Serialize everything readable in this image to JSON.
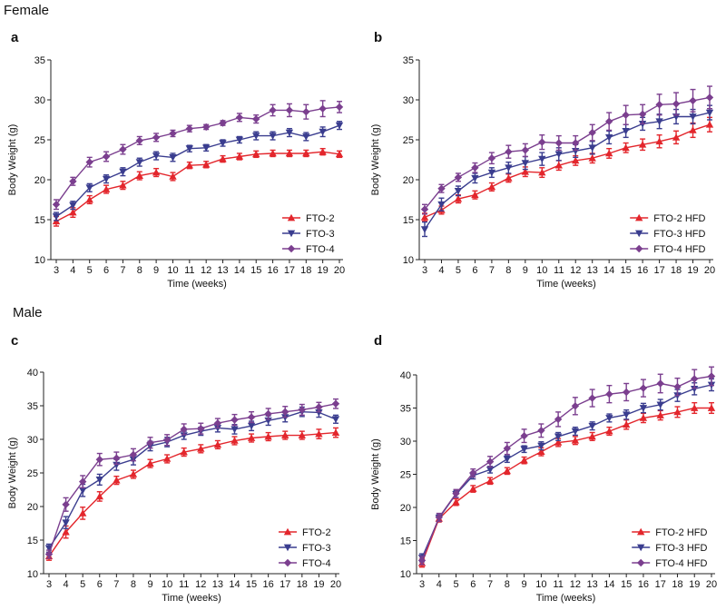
{
  "sections": {
    "female": "Female",
    "male": "Male"
  },
  "chart_data": [
    {
      "id": "a",
      "label": "a",
      "type": "line",
      "xlabel": "Time (weeks)",
      "ylabel": "Body Weight (g)",
      "xlim": [
        3,
        20
      ],
      "ylim": [
        10,
        35
      ],
      "yticks": [
        10,
        15,
        20,
        25,
        30,
        35
      ],
      "x": [
        3,
        4,
        5,
        6,
        7,
        8,
        9,
        10,
        11,
        12,
        13,
        14,
        15,
        16,
        17,
        18,
        19,
        20
      ],
      "legend_position": "bottom-right",
      "series": [
        {
          "name": "FTO-2",
          "color": "#e3262c",
          "marker": "triangle-up",
          "values": [
            14.8,
            15.9,
            17.5,
            18.8,
            19.3,
            20.5,
            20.9,
            20.4,
            21.8,
            21.9,
            22.6,
            22.9,
            23.2,
            23.3,
            23.3,
            23.3,
            23.5,
            23.2
          ],
          "errors": [
            0.6,
            0.6,
            0.5,
            0.5,
            0.5,
            0.5,
            0.5,
            0.5,
            0.4,
            0.4,
            0.4,
            0.4,
            0.4,
            0.4,
            0.4,
            0.4,
            0.4,
            0.4
          ]
        },
        {
          "name": "FTO-3",
          "color": "#3a3d8f",
          "marker": "triangle-down",
          "values": [
            15.4,
            16.8,
            19.0,
            20.1,
            21.0,
            22.2,
            23.0,
            22.8,
            23.9,
            24.0,
            24.6,
            25.0,
            25.5,
            25.5,
            25.9,
            25.4,
            26.0,
            26.8
          ],
          "errors": [
            0.5,
            0.5,
            0.5,
            0.5,
            0.5,
            0.5,
            0.5,
            0.5,
            0.4,
            0.4,
            0.4,
            0.4,
            0.5,
            0.5,
            0.5,
            0.5,
            0.6,
            0.5
          ]
        },
        {
          "name": "FTO-4",
          "color": "#7b3f8f",
          "marker": "diamond",
          "values": [
            16.9,
            19.8,
            22.2,
            22.9,
            23.8,
            24.9,
            25.3,
            25.8,
            26.4,
            26.6,
            27.1,
            27.8,
            27.6,
            28.7,
            28.7,
            28.5,
            28.9,
            29.1
          ],
          "errors": [
            0.6,
            0.5,
            0.6,
            0.6,
            0.6,
            0.5,
            0.5,
            0.4,
            0.4,
            0.3,
            0.3,
            0.5,
            0.5,
            0.7,
            0.8,
            0.9,
            1.0,
            0.7
          ]
        }
      ]
    },
    {
      "id": "b",
      "label": "b",
      "type": "line",
      "xlabel": "Time (weeks)",
      "ylabel": "Body Weight (g)",
      "xlim": [
        3,
        20
      ],
      "ylim": [
        10,
        35
      ],
      "yticks": [
        10,
        15,
        20,
        25,
        30,
        35
      ],
      "x": [
        3,
        4,
        5,
        6,
        7,
        8,
        9,
        10,
        11,
        12,
        13,
        14,
        15,
        16,
        17,
        18,
        19,
        20
      ],
      "legend_position": "bottom-right",
      "series": [
        {
          "name": "FTO-2 HFD",
          "color": "#e3262c",
          "marker": "triangle-up",
          "values": [
            15.3,
            16.2,
            17.6,
            18.1,
            19.1,
            20.2,
            21.0,
            20.9,
            21.8,
            22.4,
            22.7,
            23.3,
            24.0,
            24.4,
            24.8,
            25.3,
            26.2,
            26.9
          ],
          "errors": [
            0.5,
            0.5,
            0.5,
            0.5,
            0.5,
            0.5,
            0.6,
            0.6,
            0.6,
            0.6,
            0.6,
            0.6,
            0.6,
            0.7,
            0.8,
            0.8,
            0.9,
            0.9
          ]
        },
        {
          "name": "FTO-3 HFD",
          "color": "#3a3d8f",
          "marker": "triangle-down",
          "values": [
            13.8,
            16.9,
            18.6,
            20.2,
            20.9,
            21.5,
            22.1,
            22.6,
            23.2,
            23.6,
            24.0,
            25.3,
            26.1,
            27.0,
            27.3,
            27.9,
            27.9,
            28.4
          ],
          "errors": [
            0.9,
            0.8,
            0.6,
            0.6,
            0.6,
            0.7,
            0.8,
            0.8,
            0.8,
            0.8,
            0.8,
            0.8,
            0.8,
            0.8,
            0.9,
            0.9,
            0.9,
            0.9
          ]
        },
        {
          "name": "FTO-4 HFD",
          "color": "#7b3f8f",
          "marker": "diamond",
          "values": [
            16.3,
            18.9,
            20.3,
            21.5,
            22.7,
            23.5,
            23.7,
            24.7,
            24.6,
            24.6,
            25.9,
            27.3,
            28.1,
            28.2,
            29.4,
            29.5,
            29.9,
            30.3
          ],
          "errors": [
            0.6,
            0.5,
            0.5,
            0.6,
            0.7,
            0.8,
            0.8,
            0.9,
            0.9,
            0.9,
            1.0,
            1.1,
            1.2,
            1.2,
            1.3,
            1.4,
            1.4,
            1.4
          ]
        }
      ]
    },
    {
      "id": "c",
      "label": "c",
      "type": "line",
      "xlabel": "Time (weeks)",
      "ylabel": "Body Weight (g)",
      "xlim": [
        3,
        20
      ],
      "ylim": [
        10,
        40
      ],
      "yticks": [
        10,
        15,
        20,
        25,
        30,
        35,
        40
      ],
      "x": [
        3,
        4,
        5,
        6,
        7,
        8,
        9,
        10,
        11,
        12,
        13,
        14,
        15,
        16,
        17,
        18,
        19,
        20
      ],
      "legend_position": "bottom-right",
      "series": [
        {
          "name": "FTO-2",
          "color": "#e3262c",
          "marker": "triangle-up",
          "values": [
            12.6,
            16.2,
            19.0,
            21.5,
            23.9,
            24.8,
            26.4,
            27.1,
            28.1,
            28.6,
            29.2,
            29.8,
            30.2,
            30.4,
            30.6,
            30.6,
            30.8,
            31.0
          ],
          "errors": [
            0.6,
            0.9,
            0.9,
            0.7,
            0.6,
            0.6,
            0.6,
            0.6,
            0.6,
            0.6,
            0.6,
            0.6,
            0.6,
            0.6,
            0.6,
            0.6,
            0.7,
            0.7
          ]
        },
        {
          "name": "FTO-3",
          "color": "#3a3d8f",
          "marker": "triangle-down",
          "values": [
            13.8,
            17.6,
            22.4,
            24.0,
            26.2,
            27.0,
            29.0,
            29.6,
            30.6,
            31.2,
            31.7,
            31.5,
            32.0,
            32.8,
            33.3,
            34.1,
            34.0,
            33.0
          ],
          "errors": [
            0.6,
            0.9,
            0.9,
            0.8,
            0.8,
            0.8,
            0.7,
            0.7,
            0.6,
            0.6,
            0.6,
            0.7,
            0.7,
            0.7,
            0.7,
            0.7,
            0.7,
            0.6
          ]
        },
        {
          "name": "FTO-4",
          "color": "#7b3f8f",
          "marker": "diamond",
          "values": [
            12.9,
            20.3,
            23.7,
            27.0,
            27.2,
            27.7,
            29.5,
            29.9,
            31.5,
            31.6,
            32.4,
            32.9,
            33.3,
            33.8,
            34.1,
            34.4,
            34.8,
            35.3
          ],
          "errors": [
            0.6,
            1.0,
            0.9,
            0.9,
            0.9,
            0.9,
            0.8,
            0.8,
            0.8,
            0.8,
            0.7,
            0.8,
            0.8,
            0.8,
            0.8,
            0.8,
            0.7,
            0.7
          ]
        }
      ]
    },
    {
      "id": "d",
      "label": "d",
      "type": "line",
      "xlabel": "Time (weeks)",
      "ylabel": "Body Weight (g)",
      "xlim": [
        3,
        20
      ],
      "ylim": [
        10,
        40
      ],
      "yticks": [
        10,
        15,
        20,
        25,
        30,
        35,
        40
      ],
      "x": [
        3,
        4,
        5,
        6,
        7,
        8,
        9,
        10,
        11,
        12,
        13,
        14,
        15,
        16,
        17,
        18,
        19,
        20
      ],
      "legend_position": "bottom-right",
      "series": [
        {
          "name": "FTO-2 HFD",
          "color": "#e3262c",
          "marker": "triangle-up",
          "values": [
            11.6,
            18.3,
            20.8,
            22.8,
            24.0,
            25.5,
            27.1,
            28.4,
            29.8,
            30.1,
            30.7,
            31.5,
            32.5,
            33.5,
            33.9,
            34.4,
            35.0,
            35.0
          ],
          "errors": [
            0.6,
            0.5,
            0.5,
            0.5,
            0.5,
            0.5,
            0.5,
            0.6,
            0.6,
            0.6,
            0.6,
            0.6,
            0.7,
            0.7,
            0.7,
            0.8,
            0.8,
            0.8
          ]
        },
        {
          "name": "FTO-3 HFD",
          "color": "#3a3d8f",
          "marker": "triangle-down",
          "values": [
            12.4,
            18.4,
            22.0,
            24.8,
            25.7,
            27.3,
            28.8,
            29.3,
            30.7,
            31.5,
            32.3,
            33.5,
            34.0,
            35.0,
            35.5,
            36.9,
            37.9,
            38.5
          ],
          "errors": [
            0.6,
            0.5,
            0.5,
            0.5,
            0.5,
            0.5,
            0.5,
            0.6,
            0.6,
            0.6,
            0.6,
            0.6,
            0.7,
            0.7,
            0.8,
            0.9,
            0.9,
            0.9
          ]
        },
        {
          "name": "FTO-4 HFD",
          "color": "#7b3f8f",
          "marker": "diamond",
          "values": [
            12.0,
            18.5,
            22.1,
            25.2,
            26.9,
            28.9,
            30.8,
            31.6,
            33.3,
            35.3,
            36.5,
            37.1,
            37.4,
            38.0,
            38.7,
            38.2,
            39.4,
            39.8
          ],
          "errors": [
            0.6,
            0.6,
            0.6,
            0.6,
            0.8,
            0.9,
            1.0,
            1.0,
            1.1,
            1.3,
            1.3,
            1.3,
            1.3,
            1.3,
            1.4,
            1.3,
            1.4,
            1.4
          ]
        }
      ]
    }
  ]
}
